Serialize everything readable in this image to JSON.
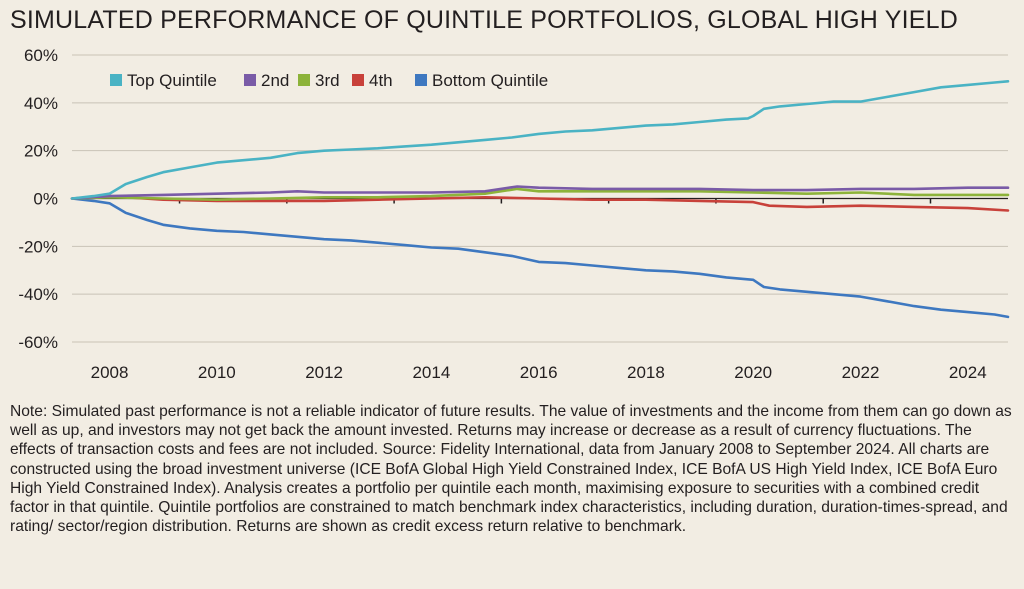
{
  "title": "SIMULATED PERFORMANCE OF QUINTILE PORTFOLIOS, GLOBAL HIGH YIELD",
  "note": "Note: Simulated past performance is not a reliable indicator of future results. The value of investments and the income from them can go down as well as up, and investors may not get back the amount invested. Returns may increase or decrease as a result of currency fluctuations. The effects of transaction costs and fees are not included. Source: Fidelity International, data from January 2008 to September 2024. All charts are constructed using the broad investment universe (ICE BofA Global High Yield Constrained Index, ICE BofA US High Yield Index, ICE BofA Euro High Yield Constrained Index). Analysis creates a portfolio per quintile each month, maximising exposure to securities with a combined credit factor in that quintile. Quintile portfolios are constrained to match benchmark index characteristics, including duration, duration-times-spread, and rating/ sector/region distribution. Returns are shown as credit excess return relative to benchmark.",
  "chart_data": {
    "type": "line",
    "title": "SIMULATED PERFORMANCE OF QUINTILE PORTFOLIOS, GLOBAL HIGH YIELD",
    "xlabel": "",
    "ylabel": "",
    "xlim": [
      2007.3,
      2024.75
    ],
    "ylim": [
      -60,
      60
    ],
    "grid": "horizontal",
    "legend_position": "top-left",
    "y_ticks": [
      60,
      40,
      20,
      0,
      -20,
      -40,
      -60
    ],
    "y_tick_labels": [
      "60%",
      "40%",
      "20%",
      "0%",
      "-20%",
      "-40%",
      "-60%"
    ],
    "x_ticks": [
      2008,
      2010,
      2012,
      2014,
      2016,
      2018,
      2020,
      2022,
      2024
    ],
    "x_tick_labels": [
      "2008",
      "2010",
      "2012",
      "2014",
      "2016",
      "2018",
      "2020",
      "2022",
      "2024"
    ],
    "series": [
      {
        "name": "Top Quintile",
        "color": "#4ab3c4",
        "x": [
          2007.3,
          2007.7,
          2008.0,
          2008.3,
          2008.7,
          2009.0,
          2009.5,
          2010.0,
          2010.5,
          2011.0,
          2011.5,
          2012.0,
          2012.5,
          2013.0,
          2013.5,
          2014.0,
          2014.5,
          2015.0,
          2015.5,
          2016.0,
          2016.5,
          2017.0,
          2017.5,
          2018.0,
          2018.5,
          2019.0,
          2019.5,
          2019.9,
          2020.0,
          2020.2,
          2020.5,
          2021.0,
          2021.5,
          2022.0,
          2022.5,
          2023.0,
          2023.5,
          2024.0,
          2024.5,
          2024.75
        ],
        "values": [
          0,
          1,
          2,
          6,
          9,
          11,
          13,
          15,
          16,
          17,
          19,
          20,
          20.5,
          21,
          21.8,
          22.5,
          23.5,
          24.5,
          25.5,
          27,
          28,
          28.5,
          29.5,
          30.5,
          31,
          32,
          33,
          33.5,
          34.5,
          37.5,
          38.5,
          39.5,
          40.5,
          40.5,
          42.5,
          44.5,
          46.5,
          47.5,
          48.5,
          49
        ]
      },
      {
        "name": "2nd",
        "color": "#7a5ba7",
        "x": [
          2007.3,
          2008.0,
          2009.0,
          2010.0,
          2011.0,
          2011.5,
          2012.0,
          2013.0,
          2014.0,
          2015.0,
          2015.6,
          2016.0,
          2017.0,
          2018.0,
          2019.0,
          2020.0,
          2021.0,
          2022.0,
          2023.0,
          2024.0,
          2024.75
        ],
        "values": [
          0,
          1,
          1.5,
          2,
          2.5,
          3,
          2.5,
          2.5,
          2.5,
          3,
          5,
          4.5,
          4,
          4,
          4,
          3.5,
          3.5,
          4,
          4,
          4.5,
          4.5
        ]
      },
      {
        "name": "3rd",
        "color": "#8db33a",
        "x": [
          2007.3,
          2008.0,
          2009.0,
          2010.0,
          2011.0,
          2012.0,
          2013.0,
          2014.0,
          2015.0,
          2015.6,
          2016.0,
          2017.0,
          2018.0,
          2019.0,
          2020.0,
          2021.0,
          2022.0,
          2023.0,
          2024.0,
          2024.75
        ],
        "values": [
          0,
          0.5,
          0,
          -0.5,
          0,
          0.5,
          0.5,
          1,
          2,
          4,
          3,
          3,
          3,
          3,
          2.5,
          2,
          2.5,
          1.5,
          1.5,
          1.5
        ]
      },
      {
        "name": "4th",
        "color": "#c8413a",
        "x": [
          2007.3,
          2008.0,
          2009.0,
          2010.0,
          2011.0,
          2012.0,
          2013.0,
          2014.0,
          2015.0,
          2016.0,
          2017.0,
          2018.0,
          2019.0,
          2020.0,
          2020.3,
          2021.0,
          2022.0,
          2023.0,
          2024.0,
          2024.75
        ],
        "values": [
          0,
          1,
          -0.5,
          -1,
          -1,
          -1,
          -0.5,
          0,
          0.5,
          0,
          -0.5,
          -0.5,
          -1,
          -1.5,
          -3,
          -3.5,
          -3,
          -3.5,
          -4,
          -5
        ]
      },
      {
        "name": "Bottom Quintile",
        "color": "#3e78c0",
        "x": [
          2007.3,
          2007.7,
          2008.0,
          2008.3,
          2008.7,
          2009.0,
          2009.5,
          2010.0,
          2010.5,
          2011.0,
          2011.5,
          2012.0,
          2012.5,
          2013.0,
          2013.5,
          2014.0,
          2014.5,
          2015.0,
          2015.5,
          2016.0,
          2016.5,
          2017.0,
          2017.5,
          2018.0,
          2018.5,
          2019.0,
          2019.5,
          2020.0,
          2020.2,
          2020.5,
          2021.0,
          2021.5,
          2022.0,
          2022.5,
          2023.0,
          2023.5,
          2024.0,
          2024.5,
          2024.75
        ],
        "values": [
          0,
          -1,
          -2,
          -6,
          -9,
          -11,
          -12.5,
          -13.5,
          -14,
          -15,
          -16,
          -17,
          -17.5,
          -18.5,
          -19.5,
          -20.5,
          -21,
          -22.5,
          -24,
          -26.5,
          -27,
          -28,
          -29,
          -30,
          -30.5,
          -31.5,
          -33,
          -34,
          -37,
          -38,
          -39,
          -40,
          -41,
          -43,
          -45,
          -46.5,
          -47.5,
          -48.5,
          -49.5
        ]
      }
    ]
  }
}
